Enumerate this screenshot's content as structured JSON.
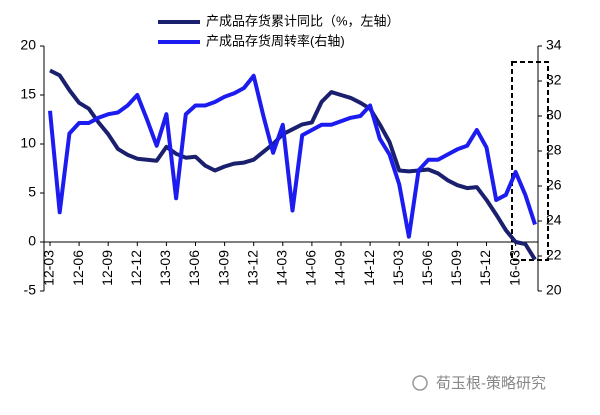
{
  "chart_data": {
    "type": "line",
    "categories": [
      "12-03",
      null,
      null,
      "12-06",
      null,
      null,
      "12-09",
      null,
      null,
      "12-12",
      null,
      null,
      "13-03",
      null,
      null,
      "13-06",
      null,
      null,
      "13-09",
      null,
      null,
      "13-12",
      null,
      null,
      "14-03",
      null,
      null,
      "14-06",
      null,
      null,
      "14-09",
      null,
      null,
      "14-12",
      null,
      null,
      "15-03",
      null,
      null,
      "15-06",
      null,
      null,
      "15-09",
      null,
      null,
      "15-12",
      null,
      null,
      "16-03",
      null,
      null
    ],
    "series": [
      {
        "name": "产成品存货累计同比（%，左轴）",
        "color": "#1a1f6e",
        "axis": "y",
        "values": [
          17.5,
          17.0,
          15.5,
          14.2,
          13.6,
          12.2,
          11.0,
          9.5,
          8.9,
          8.5,
          8.4,
          8.3,
          9.7,
          9.0,
          8.6,
          8.7,
          7.8,
          7.3,
          7.7,
          8.0,
          8.1,
          8.4,
          9.2,
          10.0,
          11.0,
          11.5,
          12.0,
          12.2,
          14.3,
          15.3,
          15.0,
          14.7,
          14.2,
          13.6,
          12.0,
          10.2,
          7.3,
          7.2,
          7.3,
          7.4,
          7.0,
          6.3,
          5.8,
          5.5,
          5.6,
          4.3,
          2.8,
          1.2,
          0.0,
          -0.2,
          -1.8
        ]
      },
      {
        "name": "产成品存货周转率(右轴)",
        "color": "#1c1cf0",
        "axis": "y2",
        "values": [
          30.3,
          24.5,
          29.0,
          29.6,
          29.6,
          29.9,
          30.1,
          30.2,
          30.6,
          31.2,
          29.8,
          28.3,
          30.1,
          25.3,
          30.1,
          30.6,
          30.6,
          30.8,
          31.1,
          31.3,
          31.6,
          32.3,
          30.0,
          27.9,
          29.5,
          24.6,
          28.9,
          29.2,
          29.5,
          29.5,
          29.7,
          29.9,
          30.0,
          30.6,
          28.7,
          27.8,
          26.1,
          23.1,
          26.9,
          27.5,
          27.5,
          27.8,
          28.1,
          28.3,
          29.2,
          28.2,
          25.2,
          25.5,
          26.8,
          25.5,
          23.8
        ]
      }
    ],
    "ylim": [
      -5,
      20
    ],
    "yticks": [
      -5,
      0,
      5,
      10,
      15,
      20
    ],
    "y2lim": [
      20,
      34
    ],
    "y2ticks": [
      20,
      22,
      24,
      26,
      28,
      30,
      32,
      34
    ],
    "watermark": "荀玉根-策略研究"
  }
}
